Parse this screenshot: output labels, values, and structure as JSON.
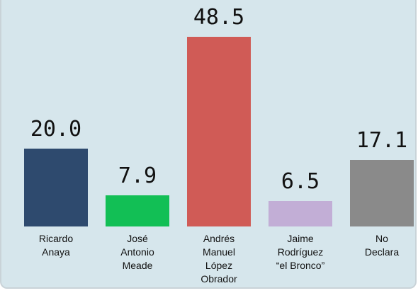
{
  "chart_data": {
    "type": "bar",
    "categories": [
      "Ricardo Anaya",
      "José Antonio Meade",
      "Andrés Manuel López Obrador",
      "Jaime Rodríguez “el Bronco”",
      "No Declara"
    ],
    "values": [
      20.0,
      7.9,
      48.5,
      6.5,
      17.1
    ],
    "value_labels": [
      "20.0",
      "7.9",
      "48.5",
      "6.5",
      "17.1"
    ],
    "colors": [
      "#2e4a6e",
      "#12bf55",
      "#d05b56",
      "#c2aed6",
      "#8a8a8a"
    ]
  }
}
